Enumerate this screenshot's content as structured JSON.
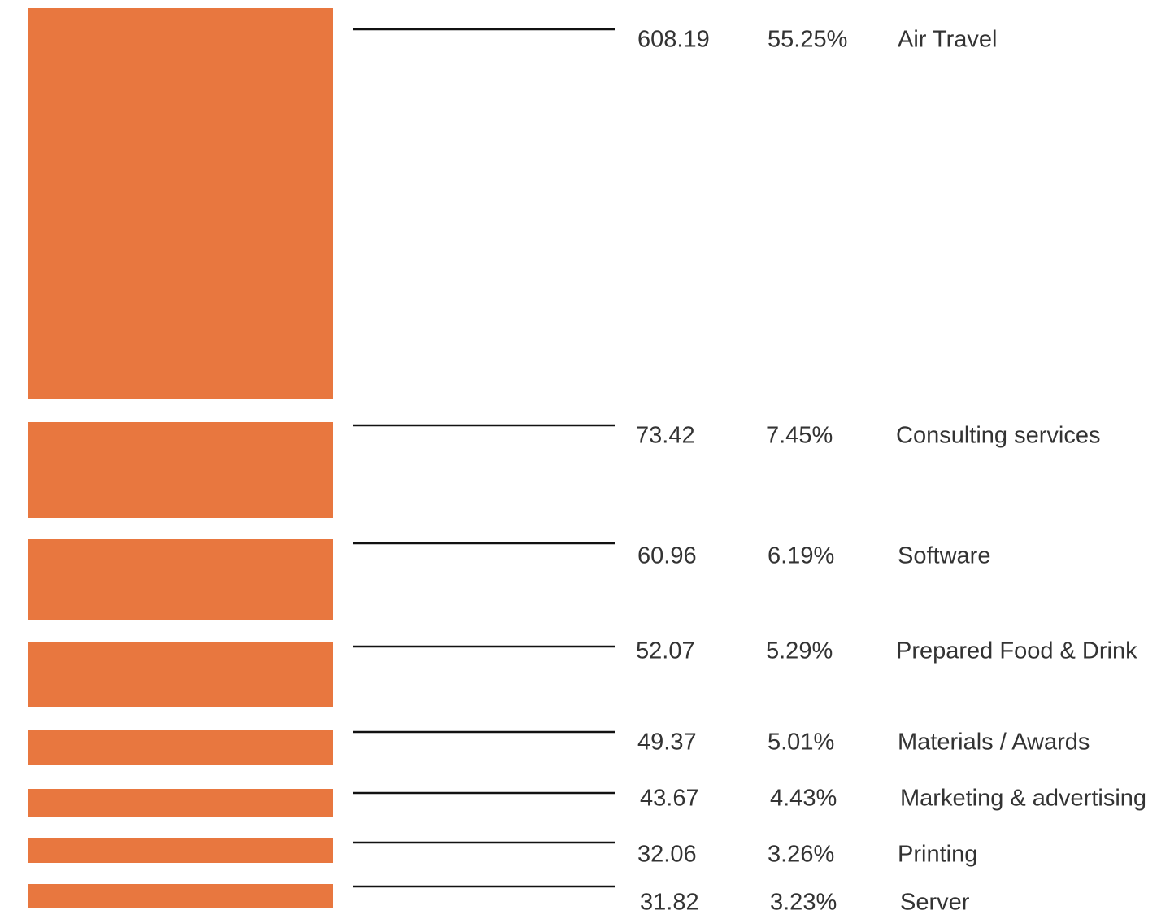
{
  "chart_data": {
    "type": "block-list",
    "categories": [
      "Air Travel",
      "Consulting services",
      "Software",
      "Prepared Food & Drink",
      "Materials / Awards",
      "Marketing & advertising",
      "Printing",
      "Server"
    ],
    "color": "#e8773f",
    "series": [
      {
        "values": [
          608.19,
          73.42,
          60.96,
          52.07,
          49.37,
          43.67,
          32.06,
          31.82
        ]
      },
      {
        "values": [
          55.25,
          7.45,
          6.19,
          5.29,
          5.01,
          4.43,
          3.26,
          3.23
        ],
        "value_labels": [
          "55.25%",
          "7.45%",
          "6.19%",
          "5.29%",
          "5.01%",
          "4.43%",
          "3.26%",
          "3.23%"
        ]
      }
    ]
  }
}
